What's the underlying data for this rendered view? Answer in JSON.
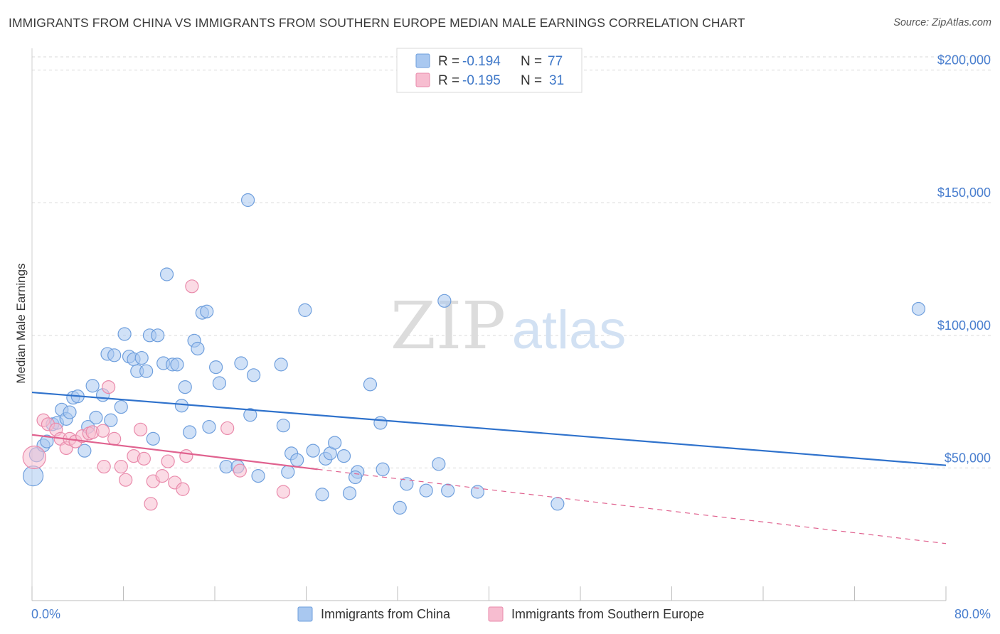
{
  "title": "IMMIGRANTS FROM CHINA VS IMMIGRANTS FROM SOUTHERN EUROPE MEDIAN MALE EARNINGS CORRELATION CHART",
  "source": "Source: ZipAtlas.com",
  "watermark": {
    "zip": "ZIP",
    "atlas": "atlas"
  },
  "colors": {
    "china_fill": "#a9c8f0",
    "china_stroke": "#6f9fdd",
    "china_line": "#2f72cc",
    "europe_fill": "#f7bdd0",
    "europe_stroke": "#e98aab",
    "europe_line": "#e0628f",
    "grid": "#d9d9d9",
    "tick_text": "#4a7fcf"
  },
  "legend": {
    "rows": [
      {
        "r_label": "R =",
        "r_value": "-0.194",
        "n_label": "N =",
        "n_value": "77"
      },
      {
        "r_label": "R =",
        "r_value": "-0.195",
        "n_label": "N =",
        "n_value": "31"
      }
    ]
  },
  "chart_data": {
    "type": "scatter",
    "ylabel": "Median Male Earnings",
    "x_tick_labels": [
      "0.0%",
      "80.0%"
    ],
    "y_tick_labels": [
      "$50,000",
      "$100,000",
      "$150,000",
      "$200,000"
    ],
    "xlim": [
      0,
      80
    ],
    "ylim": [
      0,
      205000
    ],
    "y_ticks": [
      50000,
      100000,
      150000,
      200000
    ],
    "grid": true,
    "series": [
      {
        "name": "Immigrants from China",
        "trend": {
          "x0": 0,
          "y0": 78500,
          "x1": 80,
          "y1": 51000,
          "dashed_extension": false
        },
        "points": [
          [
            0.1,
            47000,
            14
          ],
          [
            0.4,
            55000,
            10
          ],
          [
            1.0,
            58500,
            9
          ],
          [
            1.3,
            60000,
            9
          ],
          [
            1.8,
            66500,
            9
          ],
          [
            2.2,
            67000,
            9
          ],
          [
            2.6,
            72000,
            9
          ],
          [
            3.0,
            68500,
            9
          ],
          [
            3.3,
            71000,
            9
          ],
          [
            3.6,
            76500,
            9
          ],
          [
            4.0,
            77000,
            9
          ],
          [
            4.6,
            56500,
            9
          ],
          [
            4.9,
            65500,
            9
          ],
          [
            5.3,
            81000,
            9
          ],
          [
            5.6,
            69000,
            9
          ],
          [
            6.2,
            77500,
            9
          ],
          [
            6.6,
            93000,
            9
          ],
          [
            6.9,
            68000,
            9
          ],
          [
            7.2,
            92500,
            9
          ],
          [
            7.8,
            73000,
            9
          ],
          [
            8.1,
            100500,
            9
          ],
          [
            8.5,
            92000,
            9
          ],
          [
            8.9,
            91000,
            9
          ],
          [
            9.2,
            86500,
            9
          ],
          [
            9.6,
            91500,
            9
          ],
          [
            10.0,
            86500,
            9
          ],
          [
            10.3,
            100000,
            9
          ],
          [
            10.6,
            61000,
            9
          ],
          [
            11.0,
            100000,
            9
          ],
          [
            11.5,
            89500,
            9
          ],
          [
            11.8,
            123000,
            9
          ],
          [
            12.3,
            89000,
            9
          ],
          [
            12.7,
            89000,
            9
          ],
          [
            13.1,
            73500,
            9
          ],
          [
            13.4,
            80500,
            9
          ],
          [
            13.8,
            63500,
            9
          ],
          [
            14.2,
            98000,
            9
          ],
          [
            14.5,
            95000,
            9
          ],
          [
            14.9,
            108500,
            9
          ],
          [
            15.3,
            109000,
            9
          ],
          [
            15.5,
            65500,
            9
          ],
          [
            16.1,
            88000,
            9
          ],
          [
            16.4,
            82000,
            9
          ],
          [
            17.0,
            50500,
            9
          ],
          [
            18.0,
            50500,
            9
          ],
          [
            18.3,
            89500,
            9
          ],
          [
            18.9,
            151000,
            9
          ],
          [
            19.1,
            70000,
            9
          ],
          [
            19.4,
            85000,
            9
          ],
          [
            19.8,
            47000,
            9
          ],
          [
            21.8,
            89000,
            9
          ],
          [
            22.0,
            66000,
            9
          ],
          [
            22.4,
            48500,
            9
          ],
          [
            22.7,
            55500,
            9
          ],
          [
            23.2,
            53000,
            9
          ],
          [
            23.9,
            109500,
            9
          ],
          [
            24.6,
            56500,
            9
          ],
          [
            25.4,
            40000,
            9
          ],
          [
            25.7,
            53500,
            9
          ],
          [
            26.1,
            55500,
            9
          ],
          [
            26.5,
            59500,
            9
          ],
          [
            27.3,
            54500,
            9
          ],
          [
            27.8,
            40500,
            9
          ],
          [
            28.5,
            48500,
            9
          ],
          [
            28.3,
            46500,
            9
          ],
          [
            29.6,
            81500,
            9
          ],
          [
            30.5,
            67000,
            9
          ],
          [
            30.7,
            49500,
            9
          ],
          [
            32.2,
            35000,
            9
          ],
          [
            32.8,
            44000,
            9
          ],
          [
            34.5,
            41500,
            9
          ],
          [
            35.6,
            51500,
            9
          ],
          [
            36.1,
            113000,
            9
          ],
          [
            36.4,
            41500,
            9
          ],
          [
            39.0,
            41000,
            9
          ],
          [
            46.0,
            36500,
            9
          ],
          [
            77.6,
            110000,
            9
          ]
        ]
      },
      {
        "name": "Immigrants from Southern Europe",
        "trend": {
          "x0": 0,
          "y0": 62500,
          "x1": 25,
          "y1": 49500,
          "dashed_to_x": 80,
          "dashed_to_y": 21500
        },
        "points": [
          [
            0.2,
            54000,
            16
          ],
          [
            1.0,
            68000,
            9
          ],
          [
            1.4,
            66500,
            9
          ],
          [
            2.1,
            64500,
            9
          ],
          [
            2.5,
            61000,
            9
          ],
          [
            3.0,
            57500,
            9
          ],
          [
            3.3,
            61000,
            9
          ],
          [
            3.8,
            60000,
            9
          ],
          [
            4.4,
            62000,
            9
          ],
          [
            5.0,
            63000,
            9
          ],
          [
            5.3,
            63500,
            9
          ],
          [
            6.2,
            64000,
            9
          ],
          [
            6.3,
            50500,
            9
          ],
          [
            6.7,
            80500,
            9
          ],
          [
            7.2,
            61000,
            9
          ],
          [
            7.8,
            50500,
            9
          ],
          [
            8.2,
            45500,
            9
          ],
          [
            8.9,
            54500,
            9
          ],
          [
            9.5,
            64500,
            9
          ],
          [
            9.8,
            53500,
            9
          ],
          [
            10.4,
            36500,
            9
          ],
          [
            10.6,
            45000,
            9
          ],
          [
            11.4,
            47000,
            9
          ],
          [
            11.9,
            52500,
            9
          ],
          [
            12.5,
            44500,
            9
          ],
          [
            13.2,
            42000,
            9
          ],
          [
            13.5,
            54500,
            9
          ],
          [
            14.0,
            118500,
            9
          ],
          [
            17.1,
            65000,
            9
          ],
          [
            18.2,
            49000,
            9
          ],
          [
            22.0,
            41000,
            9
          ]
        ]
      }
    ],
    "bottom_legend": [
      "Immigrants from China",
      "Immigrants from Southern Europe"
    ]
  }
}
